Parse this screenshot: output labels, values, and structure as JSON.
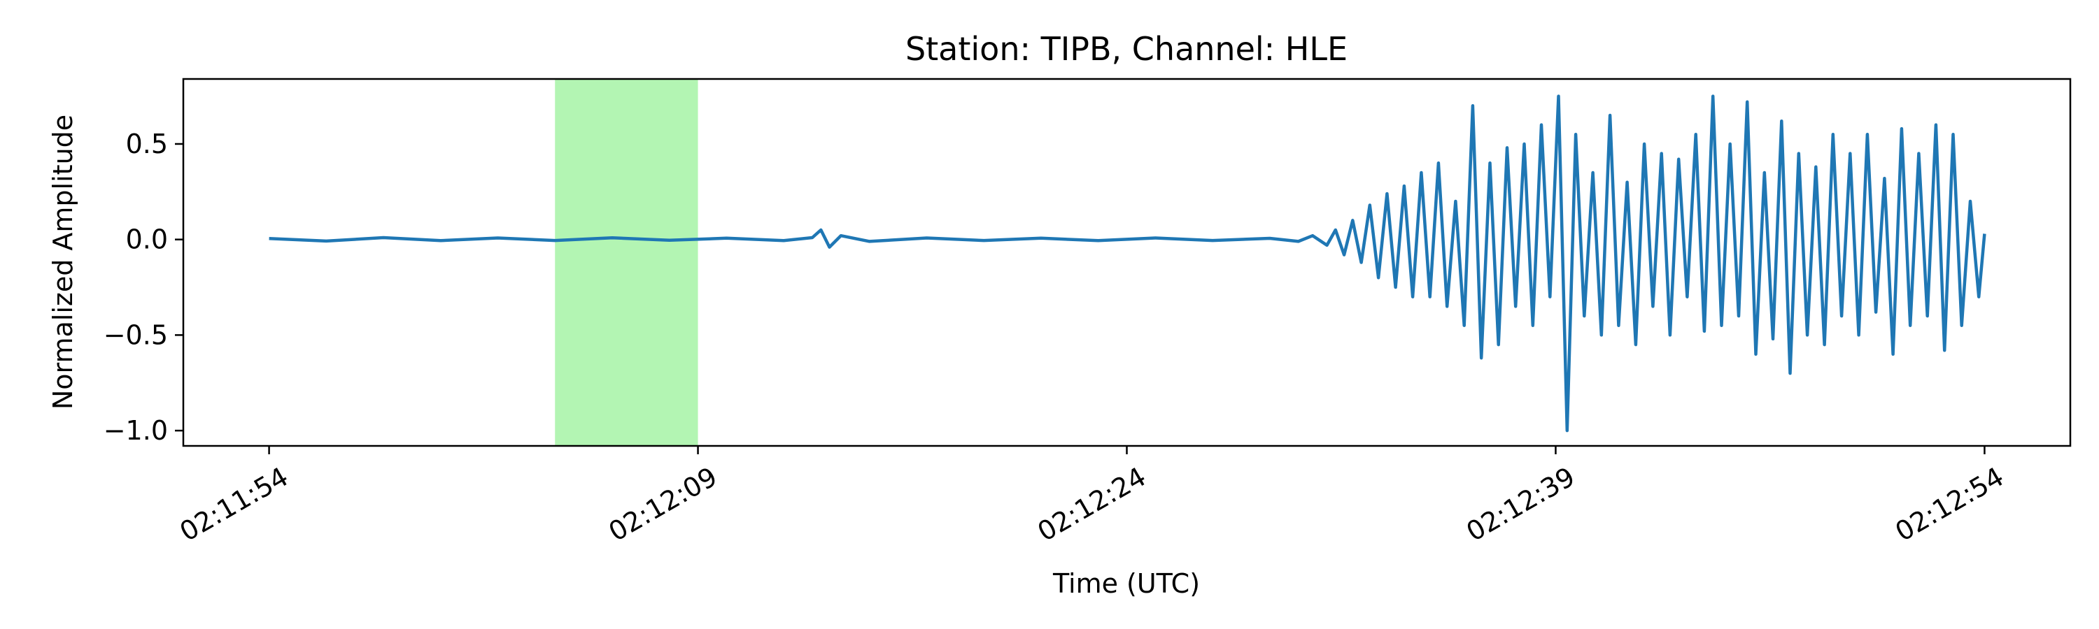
{
  "chart_data": {
    "type": "line",
    "title": "Station: TIPB, Channel: HLE",
    "xlabel": "Time (UTC)",
    "ylabel": "Normalized Amplitude",
    "x_unit": "seconds",
    "xlim": [
      -3,
      63
    ],
    "ylim": [
      -1.08,
      0.84
    ],
    "x_ticks": [
      {
        "value": 0,
        "label": "02:11:54"
      },
      {
        "value": 15,
        "label": "02:12:09"
      },
      {
        "value": 30,
        "label": "02:12:24"
      },
      {
        "value": 45,
        "label": "02:12:39"
      },
      {
        "value": 60,
        "label": "02:12:54"
      }
    ],
    "y_ticks": [
      {
        "value": 0.5,
        "label": "0.5"
      },
      {
        "value": 0.0,
        "label": "0.0"
      },
      {
        "value": -0.5,
        "label": "−0.5"
      },
      {
        "value": -1.0,
        "label": "−1.0"
      }
    ],
    "grid": false,
    "highlight": {
      "x_start": 10,
      "x_end": 15,
      "color": "#b3f5b3"
    },
    "series": [
      {
        "color": "#1f77b4",
        "x": [
          0,
          2,
          4,
          6,
          8,
          10,
          12,
          14,
          16,
          18,
          19,
          19.3,
          19.6,
          20,
          21,
          23,
          25,
          27,
          29,
          31,
          33,
          35,
          36,
          36.5,
          37,
          37.3,
          37.6,
          37.9,
          38.2,
          38.5,
          38.8,
          39.1,
          39.4,
          39.7,
          40.0,
          40.3,
          40.6,
          40.9,
          41.2,
          41.5,
          41.8,
          42.1,
          42.4,
          42.7,
          43.0,
          43.3,
          43.6,
          43.9,
          44.2,
          44.5,
          44.8,
          45.1,
          45.4,
          45.7,
          46.0,
          46.3,
          46.6,
          46.9,
          47.2,
          47.5,
          47.8,
          48.1,
          48.4,
          48.7,
          49.0,
          49.3,
          49.6,
          49.9,
          50.2,
          50.5,
          50.8,
          51.1,
          51.4,
          51.7,
          52.0,
          52.3,
          52.6,
          52.9,
          53.2,
          53.5,
          53.8,
          54.1,
          54.4,
          54.7,
          55.0,
          55.3,
          55.6,
          55.9,
          56.2,
          56.5,
          56.8,
          57.1,
          57.4,
          57.7,
          58.0,
          58.3,
          58.6,
          58.9,
          59.2,
          59.5,
          59.8,
          60.0
        ],
        "y": [
          0.005,
          -0.008,
          0.01,
          -0.006,
          0.008,
          -0.005,
          0.009,
          -0.004,
          0.007,
          -0.006,
          0.01,
          0.05,
          -0.04,
          0.02,
          -0.01,
          0.008,
          -0.005,
          0.007,
          -0.006,
          0.008,
          -0.005,
          0.006,
          -0.01,
          0.02,
          -0.03,
          0.05,
          -0.08,
          0.1,
          -0.12,
          0.18,
          -0.2,
          0.24,
          -0.25,
          0.28,
          -0.3,
          0.35,
          -0.3,
          0.4,
          -0.35,
          0.2,
          -0.45,
          0.7,
          -0.62,
          0.4,
          -0.55,
          0.48,
          -0.35,
          0.5,
          -0.45,
          0.6,
          -0.3,
          0.75,
          -1.0,
          0.55,
          -0.4,
          0.35,
          -0.5,
          0.65,
          -0.45,
          0.3,
          -0.55,
          0.5,
          -0.35,
          0.45,
          -0.5,
          0.42,
          -0.3,
          0.55,
          -0.48,
          0.75,
          -0.45,
          0.5,
          -0.4,
          0.72,
          -0.6,
          0.35,
          -0.52,
          0.62,
          -0.7,
          0.45,
          -0.5,
          0.38,
          -0.55,
          0.55,
          -0.4,
          0.45,
          -0.5,
          0.55,
          -0.38,
          0.32,
          -0.6,
          0.58,
          -0.45,
          0.45,
          -0.4,
          0.6,
          -0.58,
          0.55,
          -0.45,
          0.2,
          -0.3,
          0.03
        ]
      }
    ]
  }
}
